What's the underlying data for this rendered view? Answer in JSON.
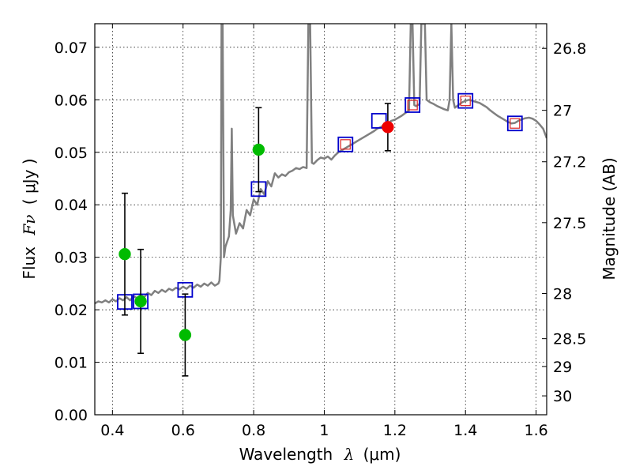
{
  "chart_data": {
    "type": "scatter",
    "xlabel_text": "Wavelength",
    "xlabel_symbol": "λ",
    "xlabel_unit": "(μm)",
    "ylabel_text": "Flux",
    "ylabel_symbol": "Fν",
    "ylabel_unit": "( μJy )",
    "y2label": "Magnitude (AB)",
    "xlim": [
      0.35,
      1.63
    ],
    "ylim": [
      0.0,
      0.0745
    ],
    "grid": true,
    "x_ticks": [
      0.4,
      0.6,
      0.8,
      1.0,
      1.2,
      1.4,
      1.6
    ],
    "x_tick_labels": [
      "0.4",
      "0.6",
      "0.8",
      "1",
      "1.2",
      "1.4",
      "1.6"
    ],
    "y_ticks": [
      0.0,
      0.01,
      0.02,
      0.03,
      0.04,
      0.05,
      0.06,
      0.07
    ],
    "y_tick_labels": [
      "0.00",
      "0.01",
      "0.02",
      "0.03",
      "0.04",
      "0.05",
      "0.06",
      "0.07"
    ],
    "mag_ticks": [
      {
        "label": "26.8",
        "flux": 0.0698
      },
      {
        "label": "27",
        "flux": 0.058
      },
      {
        "label": "27.2",
        "flux": 0.0482
      },
      {
        "label": "27.5",
        "flux": 0.0366
      },
      {
        "label": "28",
        "flux": 0.0231
      },
      {
        "label": "28.5",
        "flux": 0.0145
      },
      {
        "label": "29",
        "flux": 0.0092
      },
      {
        "label": "30",
        "flux": 0.0036
      }
    ],
    "series": [
      {
        "name": "SED model",
        "kind": "line",
        "color": "#808080",
        "points": [
          [
            0.35,
            0.0212
          ],
          [
            0.36,
            0.0216
          ],
          [
            0.37,
            0.0214
          ],
          [
            0.38,
            0.0218
          ],
          [
            0.39,
            0.0214
          ],
          [
            0.4,
            0.022
          ],
          [
            0.41,
            0.0216
          ],
          [
            0.42,
            0.0222
          ],
          [
            0.43,
            0.0218
          ],
          [
            0.44,
            0.0224
          ],
          [
            0.45,
            0.0218
          ],
          [
            0.46,
            0.0226
          ],
          [
            0.47,
            0.0222
          ],
          [
            0.48,
            0.0228
          ],
          [
            0.49,
            0.0224
          ],
          [
            0.5,
            0.0232
          ],
          [
            0.51,
            0.0228
          ],
          [
            0.52,
            0.0236
          ],
          [
            0.53,
            0.0232
          ],
          [
            0.54,
            0.0238
          ],
          [
            0.55,
            0.0234
          ],
          [
            0.56,
            0.024
          ],
          [
            0.57,
            0.0237
          ],
          [
            0.58,
            0.0242
          ],
          [
            0.59,
            0.0239
          ],
          [
            0.6,
            0.0244
          ],
          [
            0.61,
            0.024
          ],
          [
            0.62,
            0.0246
          ],
          [
            0.63,
            0.0242
          ],
          [
            0.64,
            0.0248
          ],
          [
            0.65,
            0.0244
          ],
          [
            0.66,
            0.025
          ],
          [
            0.67,
            0.0246
          ],
          [
            0.68,
            0.0252
          ],
          [
            0.69,
            0.0246
          ],
          [
            0.7,
            0.025
          ],
          [
            0.703,
            0.0255
          ],
          [
            0.707,
            0.03
          ],
          [
            0.709,
            0.0745
          ],
          [
            0.712,
            0.0745
          ],
          [
            0.716,
            0.03
          ],
          [
            0.72,
            0.032
          ],
          [
            0.73,
            0.034
          ],
          [
            0.735,
            0.039
          ],
          [
            0.738,
            0.0545
          ],
          [
            0.741,
            0.038
          ],
          [
            0.75,
            0.0345
          ],
          [
            0.76,
            0.0365
          ],
          [
            0.77,
            0.0355
          ],
          [
            0.78,
            0.039
          ],
          [
            0.79,
            0.038
          ],
          [
            0.8,
            0.041
          ],
          [
            0.81,
            0.04
          ],
          [
            0.82,
            0.043
          ],
          [
            0.83,
            0.042
          ],
          [
            0.84,
            0.0445
          ],
          [
            0.85,
            0.0435
          ],
          [
            0.86,
            0.046
          ],
          [
            0.87,
            0.0452
          ],
          [
            0.88,
            0.0458
          ],
          [
            0.89,
            0.0455
          ],
          [
            0.9,
            0.0462
          ],
          [
            0.91,
            0.0465
          ],
          [
            0.92,
            0.047
          ],
          [
            0.93,
            0.0468
          ],
          [
            0.94,
            0.0472
          ],
          [
            0.95,
            0.047
          ],
          [
            0.955,
            0.0745
          ],
          [
            0.96,
            0.0745
          ],
          [
            0.965,
            0.048
          ],
          [
            0.97,
            0.0478
          ],
          [
            0.98,
            0.0485
          ],
          [
            0.99,
            0.049
          ],
          [
            1.0,
            0.0488
          ],
          [
            1.01,
            0.0492
          ],
          [
            1.02,
            0.0486
          ],
          [
            1.03,
            0.0494
          ],
          [
            1.04,
            0.05
          ],
          [
            1.05,
            0.0504
          ],
          [
            1.06,
            0.0508
          ],
          [
            1.07,
            0.0512
          ],
          [
            1.08,
            0.0516
          ],
          [
            1.09,
            0.052
          ],
          [
            1.1,
            0.0524
          ],
          [
            1.11,
            0.0528
          ],
          [
            1.12,
            0.0532
          ],
          [
            1.13,
            0.0536
          ],
          [
            1.14,
            0.054
          ],
          [
            1.15,
            0.0545
          ],
          [
            1.16,
            0.0548
          ],
          [
            1.17,
            0.0552
          ],
          [
            1.18,
            0.0555
          ],
          [
            1.19,
            0.056
          ],
          [
            1.2,
            0.0562
          ],
          [
            1.21,
            0.0566
          ],
          [
            1.22,
            0.057
          ],
          [
            1.23,
            0.0575
          ],
          [
            1.24,
            0.058
          ],
          [
            1.245,
            0.0745
          ],
          [
            1.25,
            0.0745
          ],
          [
            1.255,
            0.059
          ],
          [
            1.26,
            0.0588
          ],
          [
            1.27,
            0.0592
          ],
          [
            1.275,
            0.0745
          ],
          [
            1.285,
            0.0745
          ],
          [
            1.29,
            0.06
          ],
          [
            1.3,
            0.0595
          ],
          [
            1.31,
            0.0592
          ],
          [
            1.32,
            0.0588
          ],
          [
            1.33,
            0.0585
          ],
          [
            1.34,
            0.0582
          ],
          [
            1.35,
            0.058
          ],
          [
            1.355,
            0.06
          ],
          [
            1.36,
            0.0745
          ],
          [
            1.365,
            0.06
          ],
          [
            1.37,
            0.0585
          ],
          [
            1.38,
            0.059
          ],
          [
            1.39,
            0.0595
          ],
          [
            1.4,
            0.0598
          ],
          [
            1.41,
            0.06
          ],
          [
            1.42,
            0.0598
          ],
          [
            1.43,
            0.0596
          ],
          [
            1.44,
            0.0594
          ],
          [
            1.45,
            0.059
          ],
          [
            1.46,
            0.0586
          ],
          [
            1.47,
            0.058
          ],
          [
            1.48,
            0.0575
          ],
          [
            1.49,
            0.057
          ],
          [
            1.5,
            0.0566
          ],
          [
            1.51,
            0.0562
          ],
          [
            1.52,
            0.0558
          ],
          [
            1.53,
            0.0555
          ],
          [
            1.54,
            0.0556
          ],
          [
            1.55,
            0.056
          ],
          [
            1.56,
            0.0563
          ],
          [
            1.57,
            0.0565
          ],
          [
            1.58,
            0.0566
          ],
          [
            1.59,
            0.0564
          ],
          [
            1.6,
            0.056
          ],
          [
            1.61,
            0.0553
          ],
          [
            1.62,
            0.0545
          ],
          [
            1.63,
            0.0527
          ]
        ]
      },
      {
        "name": "Model photometry (blue squares)",
        "kind": "square",
        "color": "#0000cc",
        "points": [
          [
            0.435,
            0.0215
          ],
          [
            0.48,
            0.0216
          ],
          [
            0.606,
            0.0238
          ],
          [
            0.814,
            0.043
          ],
          [
            1.06,
            0.0515
          ],
          [
            1.155,
            0.056
          ],
          [
            1.25,
            0.059
          ],
          [
            1.4,
            0.0598
          ],
          [
            1.54,
            0.0555
          ]
        ]
      },
      {
        "name": "Model photometry (red squares)",
        "kind": "square",
        "color": "#dd2222",
        "points": [
          [
            1.06,
            0.0515
          ],
          [
            1.25,
            0.059
          ],
          [
            1.4,
            0.0598
          ],
          [
            1.54,
            0.0555
          ]
        ]
      },
      {
        "name": "Observed photometry (green)",
        "kind": "circle",
        "color": "#00bb00",
        "points": [
          [
            0.435,
            0.0306,
            0.0116,
            0.0116
          ],
          [
            0.48,
            0.0216,
            0.0099,
            0.0099
          ],
          [
            0.606,
            0.0152,
            0.0078,
            0.0078
          ],
          [
            0.814,
            0.0505,
            0.008,
            0.008
          ]
        ]
      },
      {
        "name": "Observed photometry (red)",
        "kind": "circle",
        "color": "#ee0000",
        "points": [
          [
            1.18,
            0.0548,
            0.0045,
            0.0045
          ]
        ]
      }
    ]
  }
}
